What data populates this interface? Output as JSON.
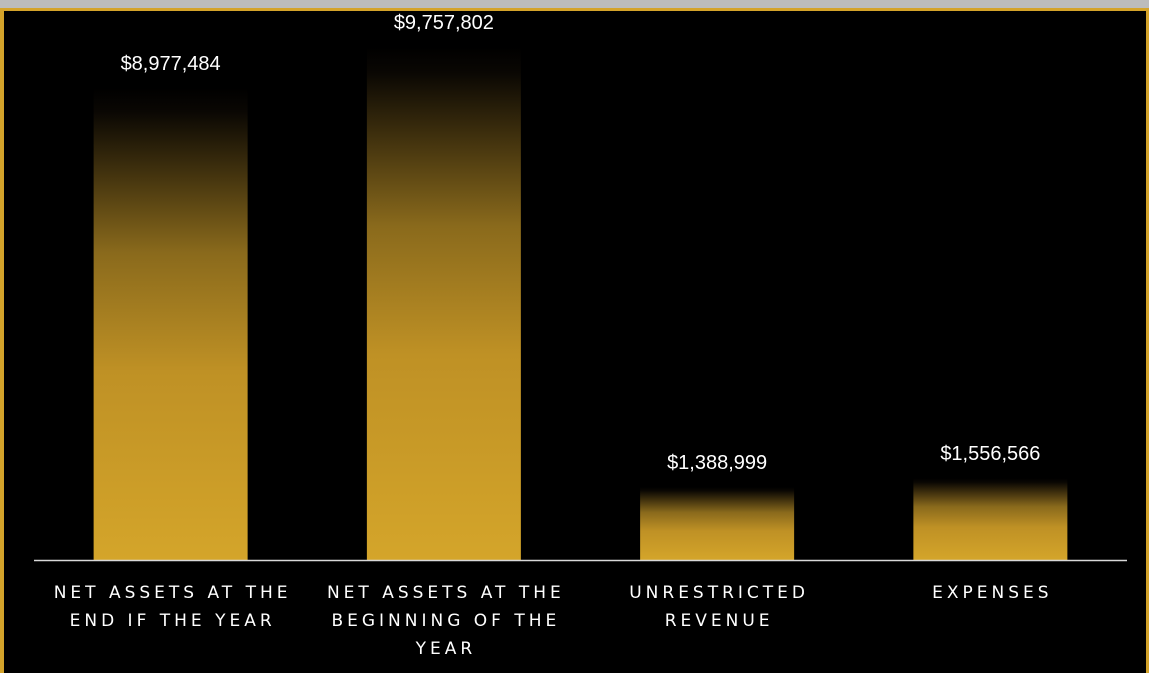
{
  "chart_data": {
    "type": "bar",
    "categories": [
      [
        "NET ASSETS AT THE",
        "END IF THE YEAR"
      ],
      [
        "NET ASSETS AT THE",
        "BEGINNING OF THE",
        "YEAR"
      ],
      [
        "UNRESTRICTED",
        "REVENUE"
      ],
      [
        "EXPENSES"
      ]
    ],
    "values": [
      8977484,
      9757802,
      1388999,
      1556566
    ],
    "data_labels": [
      "$8,977,484",
      "$9,757,802",
      "$1,388,999",
      "$1,556,566"
    ],
    "title": "",
    "xlabel": "",
    "ylabel": "",
    "ylim": [
      0,
      10500000
    ],
    "grid": false,
    "legend": "none"
  },
  "colors": {
    "background": "#000000",
    "frame": "#d4a32a",
    "bar_gold": "#d4a52a",
    "axis_line": "#d9d9d9",
    "text": "#ffffff"
  }
}
